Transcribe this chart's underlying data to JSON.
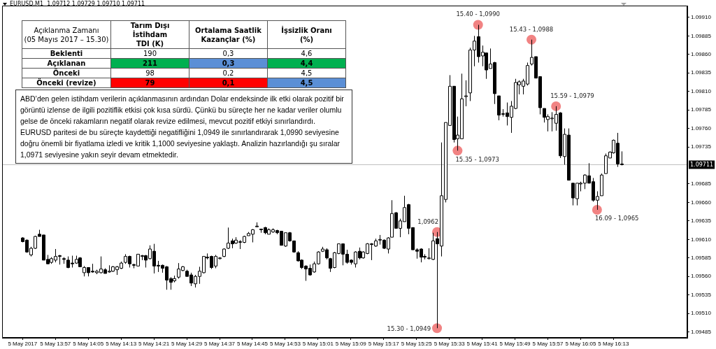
{
  "chart_data": [
    {
      "type": "candlestick",
      "title": "EURUSD,M1  1.09712 1.09729 1.09710 1.09711",
      "color": "#000000",
      "x": [
        "2017-05-05T13:49",
        "2017-05-05T13:50",
        "2017-05-05T13:51",
        "2017-05-05T13:52",
        "2017-05-05T13:53",
        "2017-05-05T13:54",
        "2017-05-05T13:55",
        "2017-05-05T13:56",
        "2017-05-05T13:57",
        "2017-05-05T13:58",
        "2017-05-05T13:59",
        "2017-05-05T14:00",
        "2017-05-05T14:01",
        "2017-05-05T14:02",
        "2017-05-05T14:03",
        "2017-05-05T14:04",
        "2017-05-05T14:05",
        "2017-05-05T14:06",
        "2017-05-05T14:07",
        "2017-05-05T14:08",
        "2017-05-05T14:09",
        "2017-05-05T14:10",
        "2017-05-05T14:11",
        "2017-05-05T14:12",
        "2017-05-05T14:13",
        "2017-05-05T14:14",
        "2017-05-05T14:15",
        "2017-05-05T14:16",
        "2017-05-05T14:17",
        "2017-05-05T14:18",
        "2017-05-05T14:19",
        "2017-05-05T14:20",
        "2017-05-05T14:21",
        "2017-05-05T14:22",
        "2017-05-05T14:23",
        "2017-05-05T14:24",
        "2017-05-05T14:25",
        "2017-05-05T14:26",
        "2017-05-05T14:27",
        "2017-05-05T14:28",
        "2017-05-05T14:29",
        "2017-05-05T14:30",
        "2017-05-05T14:31",
        "2017-05-05T14:32",
        "2017-05-05T14:33",
        "2017-05-05T14:34",
        "2017-05-05T14:35",
        "2017-05-05T14:36",
        "2017-05-05T14:37",
        "2017-05-05T14:38",
        "2017-05-05T14:39",
        "2017-05-05T14:40",
        "2017-05-05T14:41",
        "2017-05-05T14:42",
        "2017-05-05T14:43",
        "2017-05-05T14:44",
        "2017-05-05T14:45",
        "2017-05-05T14:46",
        "2017-05-05T14:47",
        "2017-05-05T14:48",
        "2017-05-05T14:49",
        "2017-05-05T14:50",
        "2017-05-05T14:51",
        "2017-05-05T14:52",
        "2017-05-05T14:53",
        "2017-05-05T14:54",
        "2017-05-05T14:55",
        "2017-05-05T14:56",
        "2017-05-05T14:57",
        "2017-05-05T14:58",
        "2017-05-05T14:59",
        "2017-05-05T15:00",
        "2017-05-05T15:01",
        "2017-05-05T15:02",
        "2017-05-05T15:03",
        "2017-05-05T15:04",
        "2017-05-05T15:05",
        "2017-05-05T15:06",
        "2017-05-05T15:07",
        "2017-05-05T15:08",
        "2017-05-05T15:09",
        "2017-05-05T15:10",
        "2017-05-05T15:11",
        "2017-05-05T15:12",
        "2017-05-05T15:13",
        "2017-05-05T15:14",
        "2017-05-05T15:15",
        "2017-05-05T15:16",
        "2017-05-05T15:17",
        "2017-05-05T15:18",
        "2017-05-05T15:19",
        "2017-05-05T15:20",
        "2017-05-05T15:21",
        "2017-05-05T15:22",
        "2017-05-05T15:23",
        "2017-05-05T15:24",
        "2017-05-05T15:25",
        "2017-05-05T15:26",
        "2017-05-05T15:27",
        "2017-05-05T15:28",
        "2017-05-05T15:29",
        "2017-05-05T15:30",
        "2017-05-05T15:31",
        "2017-05-05T15:32",
        "2017-05-05T15:33",
        "2017-05-05T15:34",
        "2017-05-05T15:35",
        "2017-05-05T15:36",
        "2017-05-05T15:37",
        "2017-05-05T15:38",
        "2017-05-05T15:39",
        "2017-05-05T15:40",
        "2017-05-05T15:41",
        "2017-05-05T15:42",
        "2017-05-05T15:43",
        "2017-05-05T15:44",
        "2017-05-05T15:45",
        "2017-05-05T15:46",
        "2017-05-05T15:47",
        "2017-05-05T15:48",
        "2017-05-05T15:49",
        "2017-05-05T15:50",
        "2017-05-05T15:51",
        "2017-05-05T15:52",
        "2017-05-05T15:53",
        "2017-05-05T15:54",
        "2017-05-05T15:55",
        "2017-05-05T15:56",
        "2017-05-05T15:57",
        "2017-05-05T15:58",
        "2017-05-05T15:59",
        "2017-05-05T16:00",
        "2017-05-05T16:01",
        "2017-05-05T16:02",
        "2017-05-05T16:03",
        "2017-05-05T16:04",
        "2017-05-05T16:05",
        "2017-05-05T16:06",
        "2017-05-05T16:07",
        "2017-05-05T16:08",
        "2017-05-05T16:09",
        "2017-05-05T16:10",
        "2017-05-05T16:11",
        "2017-05-05T16:12",
        "2017-05-05T16:13",
        "2017-05-05T16:14",
        "2017-05-05T16:15"
      ],
      "ohlc": [
        [
          1.09612,
          1.09613,
          1.09606,
          1.09607
        ],
        [
          1.09609,
          1.0961,
          1.09592,
          1.09593
        ],
        [
          1.09589,
          1.096,
          1.09587,
          1.09598
        ],
        [
          1.09598,
          1.09615,
          1.09597,
          1.09614
        ],
        [
          1.09617,
          1.09623,
          1.09614,
          1.09614
        ],
        [
          1.09616,
          1.09616,
          1.09582,
          1.09582
        ],
        [
          1.09583,
          1.09589,
          1.09577,
          1.09577
        ],
        [
          1.09579,
          1.09586,
          1.09577,
          1.09584
        ],
        [
          1.09582,
          1.09597,
          1.09579,
          1.09587
        ],
        [
          1.09588,
          1.09589,
          1.09576,
          1.09587
        ],
        [
          1.09584,
          1.09586,
          1.09577,
          1.09583
        ],
        [
          1.09582,
          1.09587,
          1.09571,
          1.09572
        ],
        [
          1.09578,
          1.09588,
          1.09572,
          1.09577
        ],
        [
          1.09578,
          1.09588,
          1.09577,
          1.09583
        ],
        [
          1.09585,
          1.09586,
          1.09573,
          1.09573
        ],
        [
          1.09565,
          1.09574,
          1.0956,
          1.09572
        ],
        [
          1.09572,
          1.09572,
          1.0956,
          1.09565
        ],
        [
          1.09567,
          1.09577,
          1.09565,
          1.09566
        ],
        [
          1.09565,
          1.09569,
          1.09563,
          1.09567
        ],
        [
          1.09565,
          1.09587,
          1.09564,
          1.0957
        ],
        [
          1.09569,
          1.09571,
          1.09564,
          1.09564
        ],
        [
          1.09566,
          1.09575,
          1.09565,
          1.09567
        ],
        [
          1.09567,
          1.09574,
          1.09566,
          1.09573
        ],
        [
          1.09569,
          1.09574,
          1.09562,
          1.09573
        ],
        [
          1.09571,
          1.0958,
          1.0957,
          1.09578
        ],
        [
          1.09579,
          1.0959,
          1.09577,
          1.09587
        ],
        [
          1.09587,
          1.09588,
          1.09572,
          1.09577
        ],
        [
          1.09576,
          1.09577,
          1.09571,
          1.09575
        ],
        [
          1.09574,
          1.0959,
          1.09574,
          1.0959
        ],
        [
          1.09587,
          1.09589,
          1.09582,
          1.09588
        ],
        [
          1.09588,
          1.09589,
          1.09572,
          1.09582
        ],
        [
          1.09584,
          1.09602,
          1.09583,
          1.09597
        ],
        [
          1.09594,
          1.09604,
          1.09564,
          1.09574
        ],
        [
          1.09575,
          1.09581,
          1.09566,
          1.09574
        ],
        [
          1.09575,
          1.09576,
          1.09565,
          1.09571
        ],
        [
          1.09573,
          1.09574,
          1.09542,
          1.09555
        ],
        [
          1.09557,
          1.09559,
          1.09542,
          1.09552
        ],
        [
          1.09554,
          1.09561,
          1.09552,
          1.09557
        ],
        [
          1.09559,
          1.09578,
          1.09557,
          1.0957
        ],
        [
          1.09568,
          1.09574,
          1.09567,
          1.09573
        ],
        [
          1.09567,
          1.09569,
          1.0956,
          1.0956
        ],
        [
          1.09562,
          1.09565,
          1.09547,
          1.09551
        ],
        [
          1.0955,
          1.09562,
          1.09545,
          1.0956
        ],
        [
          1.0956,
          1.09573,
          1.0955,
          1.09567
        ],
        [
          1.09565,
          1.09587,
          1.09564,
          1.09587
        ],
        [
          1.09586,
          1.09591,
          1.09583,
          1.09585
        ],
        [
          1.09587,
          1.09588,
          1.0957,
          1.09572
        ],
        [
          1.09574,
          1.09589,
          1.09571,
          1.09587
        ],
        [
          1.09584,
          1.09586,
          1.09583,
          1.09585
        ],
        [
          1.09587,
          1.09598,
          1.09586,
          1.09597
        ],
        [
          1.09598,
          1.09626,
          1.09597,
          1.09605
        ],
        [
          1.09608,
          1.09611,
          1.09598,
          1.09604
        ],
        [
          1.09605,
          1.09613,
          1.09604,
          1.09609
        ],
        [
          1.09606,
          1.09609,
          1.09597,
          1.09607
        ],
        [
          1.09606,
          1.09615,
          1.09605,
          1.09614
        ],
        [
          1.09615,
          1.0962,
          1.09615,
          1.09618
        ],
        [
          1.09617,
          1.09624,
          1.09606,
          1.09623
        ],
        [
          1.09627,
          1.09633,
          1.09627,
          1.09628
        ],
        [
          1.09624,
          1.09624,
          1.09619,
          1.09623
        ],
        [
          1.09626,
          1.09627,
          1.09617,
          1.09619
        ],
        [
          1.09617,
          1.09625,
          1.09617,
          1.09623
        ],
        [
          1.0962,
          1.09625,
          1.09619,
          1.09623
        ],
        [
          1.09622,
          1.09623,
          1.09617,
          1.09619
        ],
        [
          1.09621,
          1.09621,
          1.09602,
          1.09602
        ],
        [
          1.09601,
          1.09619,
          1.096,
          1.09619
        ],
        [
          1.09619,
          1.0962,
          1.09607,
          1.09608
        ],
        [
          1.09608,
          1.09608,
          1.09592,
          1.09593
        ],
        [
          1.09592,
          1.09594,
          1.0958,
          1.09581
        ],
        [
          1.09582,
          1.09583,
          1.0957,
          1.09572
        ],
        [
          1.09574,
          1.09575,
          1.09554,
          1.0957
        ],
        [
          1.09571,
          1.09576,
          1.09561,
          1.09562
        ],
        [
          1.09566,
          1.0958,
          1.09565,
          1.09577
        ],
        [
          1.09577,
          1.09594,
          1.09576,
          1.09593
        ],
        [
          1.09594,
          1.096,
          1.09593,
          1.09597
        ],
        [
          1.09596,
          1.09598,
          1.09583,
          1.09585
        ],
        [
          1.09584,
          1.09585,
          1.09566,
          1.09571
        ],
        [
          1.09572,
          1.09593,
          1.09571,
          1.09592
        ],
        [
          1.09591,
          1.09604,
          1.0959,
          1.09604
        ],
        [
          1.09604,
          1.09604,
          1.09575,
          1.0959
        ],
        [
          1.0959,
          1.09596,
          1.09577,
          1.09579
        ],
        [
          1.09582,
          1.09583,
          1.09576,
          1.09579
        ],
        [
          1.09577,
          1.09594,
          1.09572,
          1.09593
        ],
        [
          1.09594,
          1.09599,
          1.09583,
          1.09585
        ],
        [
          1.09585,
          1.09594,
          1.09584,
          1.09593
        ],
        [
          1.09591,
          1.09605,
          1.0959,
          1.09604
        ],
        [
          1.09604,
          1.09605,
          1.09582,
          1.09603
        ],
        [
          1.09601,
          1.09611,
          1.096,
          1.09608
        ],
        [
          1.09609,
          1.09616,
          1.09603,
          1.0961
        ],
        [
          1.09609,
          1.0961,
          1.09597,
          1.09598
        ],
        [
          1.09597,
          1.09613,
          1.09591,
          1.09612
        ],
        [
          1.09613,
          1.09663,
          1.09613,
          1.09645
        ],
        [
          1.09646,
          1.09647,
          1.09625,
          1.09625
        ],
        [
          1.09625,
          1.09638,
          1.09613,
          1.09635
        ],
        [
          1.09634,
          1.09669,
          1.09634,
          1.09653
        ],
        [
          1.09657,
          1.09658,
          1.09617,
          1.09625
        ],
        [
          1.09626,
          1.09626,
          1.09596,
          1.09596
        ],
        [
          1.09596,
          1.09598,
          1.09584,
          1.09594
        ],
        [
          1.09597,
          1.09598,
          1.09579,
          1.09586
        ],
        [
          1.09587,
          1.0959,
          1.09583,
          1.09586
        ],
        [
          1.09584,
          1.09598,
          1.09583,
          1.09585
        ],
        [
          1.09583,
          1.09619,
          1.09582,
          1.09608
        ],
        [
          1.09611,
          1.0962,
          1.0949,
          1.09604
        ],
        [
          1.09601,
          1.09741,
          1.09587,
          1.09669
        ],
        [
          1.09664,
          1.09768,
          1.0966,
          1.09768
        ],
        [
          1.09764,
          1.09832,
          1.09764,
          1.09817
        ],
        [
          1.09817,
          1.09817,
          1.09741,
          1.09745
        ],
        [
          1.09746,
          1.09776,
          1.0973,
          1.09751
        ],
        [
          1.09746,
          1.09834,
          1.09746,
          1.098
        ],
        [
          1.09803,
          1.09825,
          1.0979,
          1.09804
        ],
        [
          1.09808,
          1.09869,
          1.09797,
          1.09866
        ],
        [
          1.09866,
          1.09885,
          1.09844,
          1.09878
        ],
        [
          1.09884,
          1.099,
          1.09849,
          1.09857
        ],
        [
          1.09858,
          1.09872,
          1.09844,
          1.09863
        ],
        [
          1.09862,
          1.09862,
          1.09827,
          1.09839
        ],
        [
          1.09841,
          1.09868,
          1.09841,
          1.09847
        ],
        [
          1.09849,
          1.0985,
          1.09793,
          1.09807
        ],
        [
          1.09804,
          1.09804,
          1.09771,
          1.09778
        ],
        [
          1.09779,
          1.09786,
          1.09776,
          1.0978
        ],
        [
          1.09781,
          1.09795,
          1.09764,
          1.09776
        ],
        [
          1.09775,
          1.09797,
          1.09754,
          1.0979
        ],
        [
          1.09787,
          1.09827,
          1.09786,
          1.09822
        ],
        [
          1.09819,
          1.09825,
          1.09806,
          1.09823
        ],
        [
          1.09817,
          1.09827,
          1.09806,
          1.09824
        ],
        [
          1.0982,
          1.09849,
          1.09818,
          1.09845
        ],
        [
          1.09847,
          1.0988,
          1.09845,
          1.09856
        ],
        [
          1.09857,
          1.09857,
          1.09828,
          1.09828
        ],
        [
          1.0983,
          1.0983,
          1.09779,
          1.09788
        ],
        [
          1.09787,
          1.09787,
          1.09768,
          1.09775
        ],
        [
          1.09772,
          1.09779,
          1.09756,
          1.09776
        ],
        [
          1.09773,
          1.09782,
          1.09756,
          1.09774
        ],
        [
          1.09767,
          1.0979,
          1.09757,
          1.09779
        ],
        [
          1.09781,
          1.09782,
          1.0972,
          1.09723
        ],
        [
          1.09722,
          1.0976,
          1.09711,
          1.09752
        ],
        [
          1.09751,
          1.0976,
          1.0969,
          1.0969
        ],
        [
          1.09686,
          1.09686,
          1.09656,
          1.09666
        ],
        [
          1.09665,
          1.09686,
          1.09656,
          1.09686
        ],
        [
          1.09685,
          1.09688,
          1.09675,
          1.09686
        ],
        [
          1.09686,
          1.09698,
          1.09678,
          1.09697
        ],
        [
          1.09696,
          1.09713,
          1.09686,
          1.09686
        ],
        [
          1.09688,
          1.09693,
          1.09661,
          1.09663
        ],
        [
          1.09663,
          1.09675,
          1.0965,
          1.09668
        ],
        [
          1.09669,
          1.09699,
          1.09669,
          1.09697
        ],
        [
          1.09699,
          1.09726,
          1.09699,
          1.09723
        ],
        [
          1.0972,
          1.09729,
          1.0972,
          1.09728
        ],
        [
          1.09727,
          1.09745,
          1.09726,
          1.09744
        ],
        [
          1.0974,
          1.09754,
          1.09708,
          1.09712
        ],
        [
          1.09712,
          1.09729,
          1.0971,
          1.09711
        ]
      ],
      "colors": [
        "#000000",
        "#000000",
        "#ffffff",
        "#ffffff",
        "#000000",
        "#000000",
        "#000000",
        "#ffffff",
        "#ffffff",
        "#000000",
        "#000000",
        "#000000",
        "#000000",
        "#ffffff",
        "#000000",
        "#ffffff",
        "#000000",
        "#000000",
        "#ffffff",
        "#ffffff",
        "#000000",
        "#ffffff",
        "#ffffff",
        "#ffffff",
        "#ffffff",
        "#ffffff",
        "#000000",
        "#000000",
        "#ffffff",
        "#ffffff",
        "#000000",
        "#ffffff",
        "#000000",
        "#000000",
        "#000000",
        "#000000",
        "#000000",
        "#ffffff",
        "#ffffff",
        "#ffffff",
        "#000000",
        "#000000",
        "#ffffff",
        "#ffffff",
        "#ffffff",
        "#000000",
        "#000000",
        "#ffffff",
        "#ffffff",
        "#ffffff",
        "#ffffff",
        "#000000",
        "#ffffff",
        "#ffffff",
        "#ffffff",
        "#ffffff",
        "#ffffff",
        "#ffffff",
        "#000000",
        "#000000",
        "#ffffff",
        "#ffffff",
        "#000000",
        "#000000",
        "#ffffff",
        "#000000",
        "#000000",
        "#000000",
        "#000000",
        "#000000",
        "#000000",
        "#ffffff",
        "#ffffff",
        "#ffffff",
        "#000000",
        "#000000",
        "#ffffff",
        "#ffffff",
        "#000000",
        "#000000",
        "#000000",
        "#ffffff",
        "#000000",
        "#ffffff",
        "#ffffff",
        "#000000",
        "#ffffff",
        "#ffffff",
        "#000000",
        "#ffffff",
        "#ffffff",
        "#000000",
        "#ffffff",
        "#ffffff",
        "#000000",
        "#000000",
        "#000000",
        "#000000",
        "#000000",
        "#ffffff",
        "#ffffff",
        "#000000",
        "#ffffff",
        "#ffffff",
        "#ffffff",
        "#000000",
        "#ffffff",
        "#ffffff",
        "#ffffff",
        "#ffffff",
        "#ffffff",
        "#000000",
        "#ffffff",
        "#000000",
        "#ffffff",
        "#000000",
        "#000000",
        "#ffffff",
        "#000000",
        "#ffffff",
        "#ffffff",
        "#ffffff",
        "#ffffff",
        "#ffffff",
        "#ffffff",
        "#000000",
        "#000000",
        "#000000",
        "#ffffff",
        "#ffffff",
        "#ffffff",
        "#000000",
        "#ffffff",
        "#000000",
        "#000000",
        "#ffffff",
        "#ffffff",
        "#ffffff",
        "#000000",
        "#000000",
        "#ffffff",
        "#ffffff",
        "#ffffff",
        "#ffffff",
        "#ffffff",
        "#000000",
        "#000000"
      ],
      "xlim": [
        "2017-05-05T13:44",
        "2017-05-05T16:31"
      ],
      "xticks": [
        {
          "value": "2017-05-05T13:49",
          "label": "5 May 2017"
        },
        {
          "value": "2017-05-05T13:57",
          "label": "5 May 13:57"
        },
        {
          "value": "2017-05-05T14:05",
          "label": "5 May 14:05"
        },
        {
          "value": "2017-05-05T14:13",
          "label": "5 May 14:13"
        },
        {
          "value": "2017-05-05T14:21",
          "label": "5 May 14:21"
        },
        {
          "value": "2017-05-05T14:29",
          "label": "5 May 14:29"
        },
        {
          "value": "2017-05-05T14:37",
          "label": "5 May 14:37"
        },
        {
          "value": "2017-05-05T14:45",
          "label": "5 May 14:45"
        },
        {
          "value": "2017-05-05T14:53",
          "label": "5 May 14:53"
        },
        {
          "value": "2017-05-05T15:01",
          "label": "5 May 15:01"
        },
        {
          "value": "2017-05-05T15:09",
          "label": "5 May 15:09"
        },
        {
          "value": "2017-05-05T15:17",
          "label": "5 May 15:17"
        },
        {
          "value": "2017-05-05T15:25",
          "label": "5 May 15:25"
        },
        {
          "value": "2017-05-05T15:33",
          "label": "5 May 15:33"
        },
        {
          "value": "2017-05-05T15:41",
          "label": "5 May 15:41"
        },
        {
          "value": "2017-05-05T15:49",
          "label": "5 May 15:49"
        },
        {
          "value": "2017-05-05T15:57",
          "label": "5 May 15:57"
        },
        {
          "value": "2017-05-05T16:05",
          "label": "5 May 16:05"
        },
        {
          "value": "2017-05-05T16:13",
          "label": "5 May 16:13"
        }
      ],
      "ylim": [
        1.09477,
        1.09926
      ],
      "yticks": [
        {
          "value": 1.09485,
          "label": "1.09485"
        },
        {
          "value": 1.0951,
          "label": "1.09510"
        },
        {
          "value": 1.09535,
          "label": "1.09535"
        },
        {
          "value": 1.0956,
          "label": "1.09560"
        },
        {
          "value": 1.09585,
          "label": "1.09585"
        },
        {
          "value": 1.0961,
          "label": "1.09610"
        },
        {
          "value": 1.09635,
          "label": "1.09635"
        },
        {
          "value": 1.0966,
          "label": "1.09660"
        },
        {
          "value": 1.09685,
          "label": "1.09685"
        },
        {
          "value": 1.09735,
          "label": "1.09735"
        },
        {
          "value": 1.0976,
          "label": "1.09760"
        },
        {
          "value": 1.09785,
          "label": "1.09785"
        },
        {
          "value": 1.0981,
          "label": "1.09810"
        },
        {
          "value": 1.09835,
          "label": "1.09835"
        },
        {
          "value": 1.0986,
          "label": "1.09860"
        },
        {
          "value": 1.09885,
          "label": "1.09885"
        },
        {
          "value": 1.0991,
          "label": "1.09910"
        }
      ],
      "ref_lines": [
        {
          "axis": "y",
          "value": 1.09711,
          "label": "1.09711",
          "color": "#c0c0c0"
        }
      ],
      "annotations": [
        "ABD’den gelen istihdam verilerin açıklanmasının ardından Dolar endeksinde ilk etki olarak pozitif bir görüntü izlense de ilgili pozitiflik etkisi çok kısa sürdü. Çünkü bu süreçte her ne kadar veriler olumlu gelse de önceki rakamların negatif olarak revize edilmesi, mevcut pozitif etkiyi sınırlandırdı. EURUSD paritesi de bu süreçte kaydettiği negatifliğini 1,0949 ile sınırlandırarak 1,0990 seviyesine doğru önemli bir fiyatlama izledi ve kritik 1,1000 seviyesine yaklaştı. Analizin hazırlandığı şu sıralar 1,0971 seviyesine yakın seyir devam etmektedir.",
        {
          "text": "1,0962",
          "x": "2017-05-05T15:30",
          "y": 1.0962
        },
        {
          "text": "15.30 - 1,0949",
          "x": "2017-05-05T15:30",
          "y": 1.0949
        },
        {
          "text": "15.35 - 1,0973",
          "x": "2017-05-05T15:35",
          "y": 1.0973
        },
        {
          "text": "15.40 - 1,0990",
          "x": "2017-05-05T15:40",
          "y": 1.099
        },
        {
          "text": "15.43 - 1,0988",
          "x": "2017-05-05T15:53",
          "y": 1.0988
        },
        {
          "text": "15.59 - 1,0979",
          "x": "2017-05-05T15:59",
          "y": 1.0979
        },
        {
          "text": "16.09 - 1,0965",
          "x": "2017-05-05T16:09",
          "y": 1.0965
        }
      ]
    },
    {
      "type": "heatmap",
      "ylabel": "Açıklanma Zamanı\n(05 Mayıs 2017 – 15.30)",
      "categories": [
        "Tarım Dışı İstihdam\nTDI (K)",
        "Ortalama Saatlik\nKazançlar (%)",
        "İşsizlik Oranı\n(%)"
      ],
      "y_categories": [
        "Beklenti",
        "Açıklanan",
        "Önceki",
        "Önceki (revize)"
      ],
      "cells": [
        [
          190,
          0.3,
          4.6
        ],
        [
          211,
          0.3,
          4.4
        ],
        [
          98,
          0.2,
          4.5
        ],
        [
          79,
          0.1,
          4.5
        ]
      ],
      "cell_labels": [
        [
          "190",
          "0,3",
          "4,6"
        ],
        [
          "211",
          "0,3",
          "4,4"
        ],
        [
          "98",
          "0,2",
          "4,5"
        ],
        [
          "79",
          "0,1",
          "4,5"
        ]
      ],
      "colors": [
        [
          null,
          null,
          null
        ],
        [
          "#00b050",
          "#5b8fd6",
          "#00b050"
        ],
        [
          null,
          null,
          null
        ],
        [
          "#ff0000",
          "#ff0000",
          "#5b8fd6"
        ]
      ]
    }
  ]
}
